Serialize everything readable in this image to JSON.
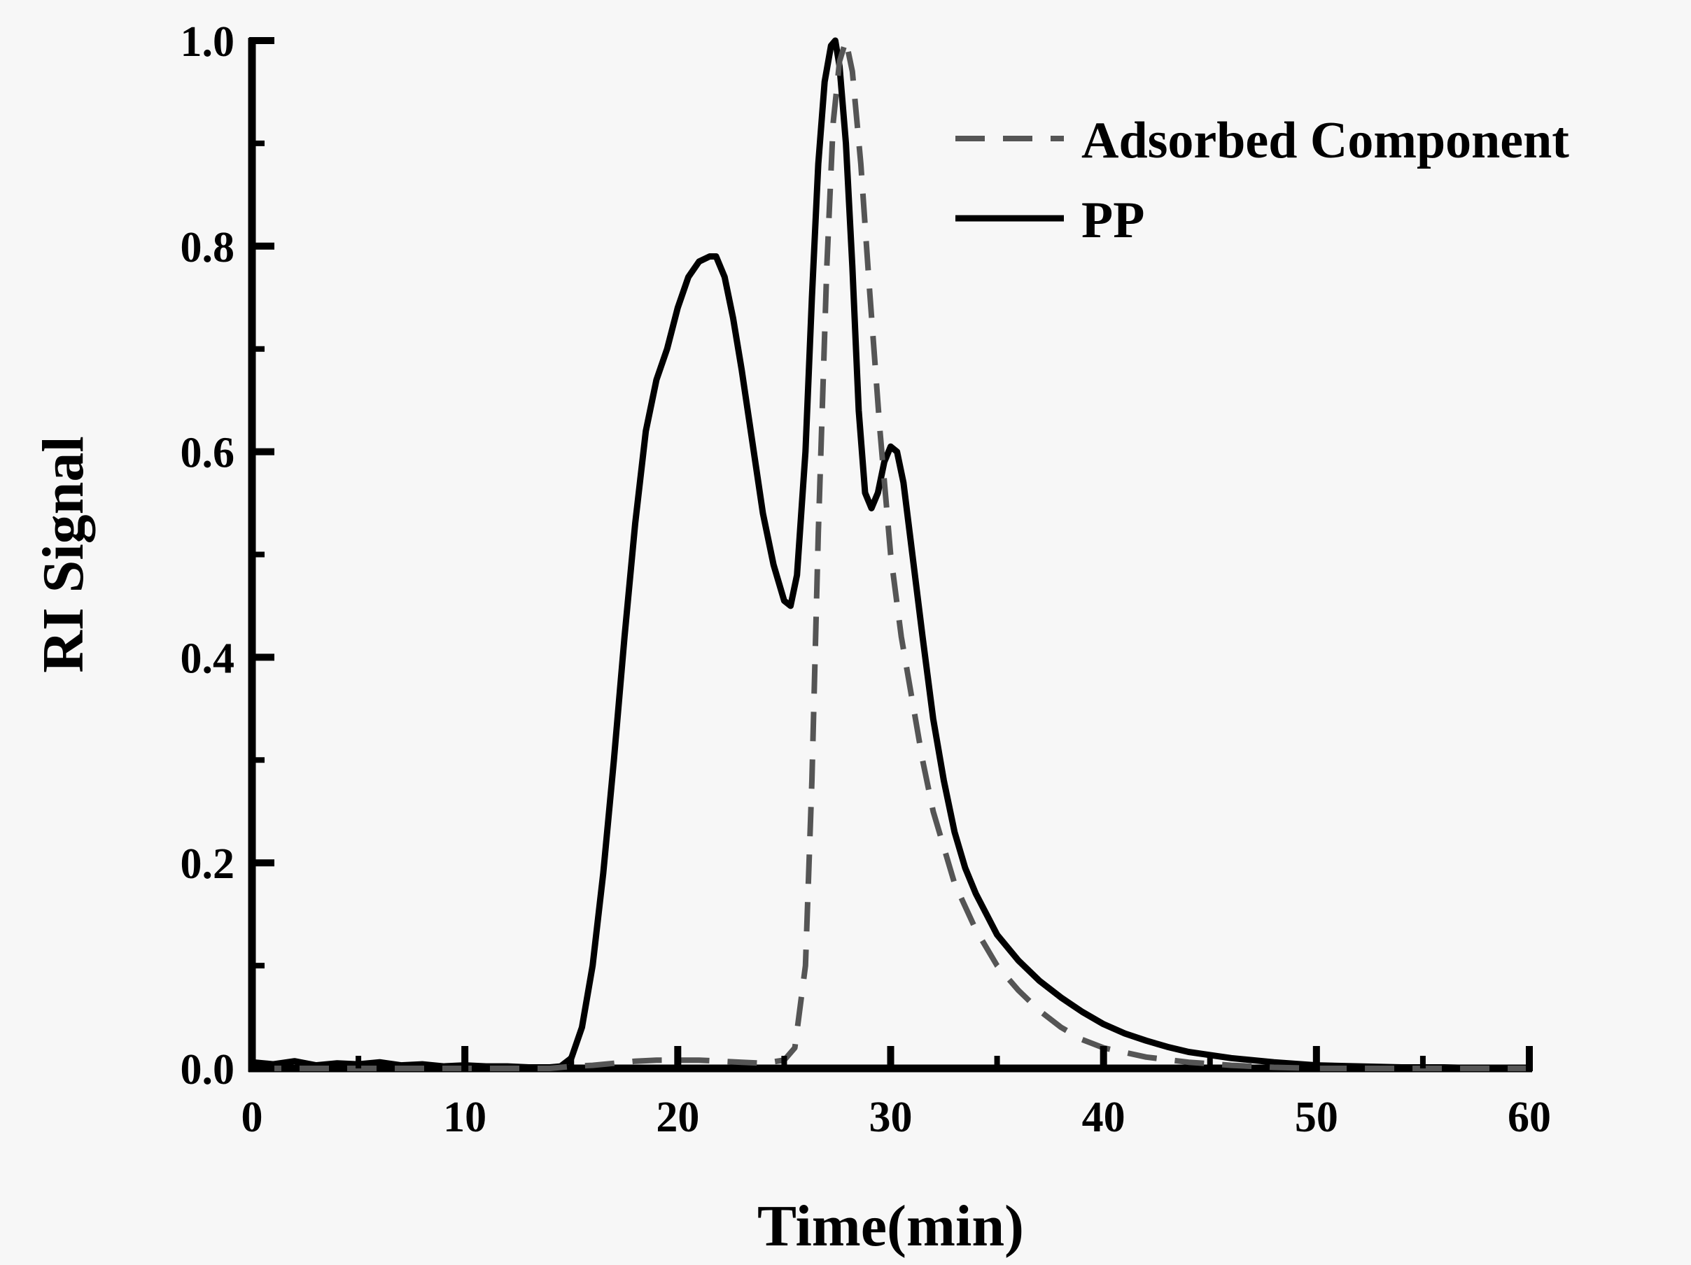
{
  "chart_data": {
    "type": "line",
    "title": "",
    "xlabel": "Time(min)",
    "ylabel": "RI Signal",
    "xlim": [
      0,
      60
    ],
    "ylim": [
      0,
      1.0
    ],
    "xticks": [
      "0",
      "10",
      "20",
      "30",
      "40",
      "50",
      "60"
    ],
    "yticks": [
      "0.0",
      "0.2",
      "0.4",
      "0.6",
      "0.8",
      "1.0"
    ],
    "grid": false,
    "legend_position": "top-right",
    "series": [
      {
        "name": "Adsorbed Component",
        "style": "dashed",
        "color": "#555555",
        "x": [
          0,
          5,
          10,
          14,
          15,
          16,
          17,
          18,
          19,
          20,
          21,
          22,
          23,
          24,
          25,
          25.5,
          26,
          26.3,
          26.6,
          27,
          27.3,
          27.6,
          27.9,
          28.2,
          28.6,
          29,
          29.5,
          30,
          30.5,
          31,
          31.5,
          32,
          33,
          34,
          35,
          36,
          37,
          38,
          39,
          40,
          42,
          44,
          46,
          48,
          50,
          52,
          55,
          60
        ],
        "y": [
          0.0,
          0.0,
          0.0,
          0.0,
          0.002,
          0.003,
          0.005,
          0.007,
          0.008,
          0.008,
          0.008,
          0.007,
          0.006,
          0.005,
          0.008,
          0.02,
          0.1,
          0.28,
          0.52,
          0.78,
          0.92,
          0.98,
          1.0,
          0.97,
          0.88,
          0.76,
          0.62,
          0.5,
          0.42,
          0.36,
          0.3,
          0.25,
          0.18,
          0.135,
          0.1,
          0.076,
          0.056,
          0.04,
          0.028,
          0.02,
          0.011,
          0.006,
          0.003,
          0.001,
          0.0,
          0.0,
          0.0,
          0.0
        ]
      },
      {
        "name": "PP",
        "style": "solid",
        "color": "#000000",
        "x": [
          0,
          1,
          2,
          3,
          4,
          5,
          6,
          7,
          8,
          9,
          10,
          11,
          12,
          13,
          14,
          14.5,
          15,
          15.5,
          16,
          16.5,
          17,
          17.5,
          18,
          18.5,
          19,
          19.5,
          20,
          20.5,
          21,
          21.5,
          21.8,
          22.2,
          22.6,
          23,
          23.5,
          24,
          24.5,
          25,
          25.3,
          25.6,
          26,
          26.3,
          26.6,
          26.9,
          27.2,
          27.4,
          27.6,
          27.9,
          28.2,
          28.5,
          28.8,
          29.1,
          29.4,
          29.7,
          30,
          30.3,
          30.6,
          30.9,
          31.2,
          31.5,
          32,
          32.5,
          33,
          33.5,
          34,
          35,
          36,
          37,
          38,
          39,
          40,
          41,
          42,
          43,
          44,
          45,
          46,
          48,
          50,
          52,
          54,
          56,
          58,
          60
        ],
        "y": [
          0.006,
          0.004,
          0.007,
          0.003,
          0.005,
          0.004,
          0.006,
          0.003,
          0.004,
          0.002,
          0.003,
          0.002,
          0.002,
          0.001,
          0.001,
          0.002,
          0.01,
          0.04,
          0.1,
          0.19,
          0.3,
          0.42,
          0.53,
          0.62,
          0.67,
          0.7,
          0.74,
          0.77,
          0.785,
          0.79,
          0.79,
          0.77,
          0.73,
          0.68,
          0.61,
          0.54,
          0.49,
          0.455,
          0.45,
          0.48,
          0.6,
          0.75,
          0.88,
          0.96,
          0.995,
          1.0,
          0.975,
          0.9,
          0.78,
          0.64,
          0.56,
          0.545,
          0.56,
          0.59,
          0.605,
          0.6,
          0.57,
          0.52,
          0.47,
          0.42,
          0.34,
          0.28,
          0.23,
          0.195,
          0.17,
          0.13,
          0.105,
          0.085,
          0.069,
          0.055,
          0.043,
          0.034,
          0.027,
          0.021,
          0.016,
          0.013,
          0.01,
          0.006,
          0.003,
          0.002,
          0.001,
          0.001,
          0.0,
          0.0
        ]
      }
    ]
  }
}
